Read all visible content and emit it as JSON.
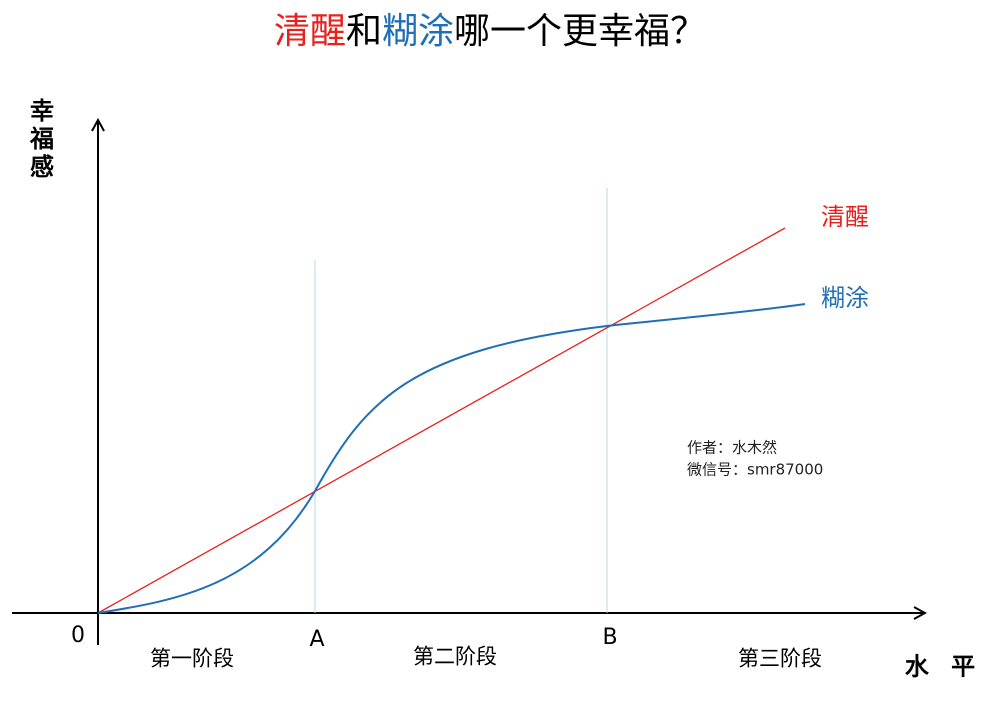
{
  "title": {
    "parts": [
      "清醒",
      "和",
      "糊涂",
      "哪一个更幸福？"
    ]
  },
  "y_axis_label": "幸福感",
  "x_axis_label": "水 平",
  "origin": "0",
  "points": [
    "A",
    "B"
  ],
  "stages": [
    "第一阶段",
    "第二阶段",
    "第三阶段"
  ],
  "curves": [
    "清醒",
    "糊涂"
  ],
  "note": [
    "作者：水木然",
    "微信号：smr87000"
  ]
}
